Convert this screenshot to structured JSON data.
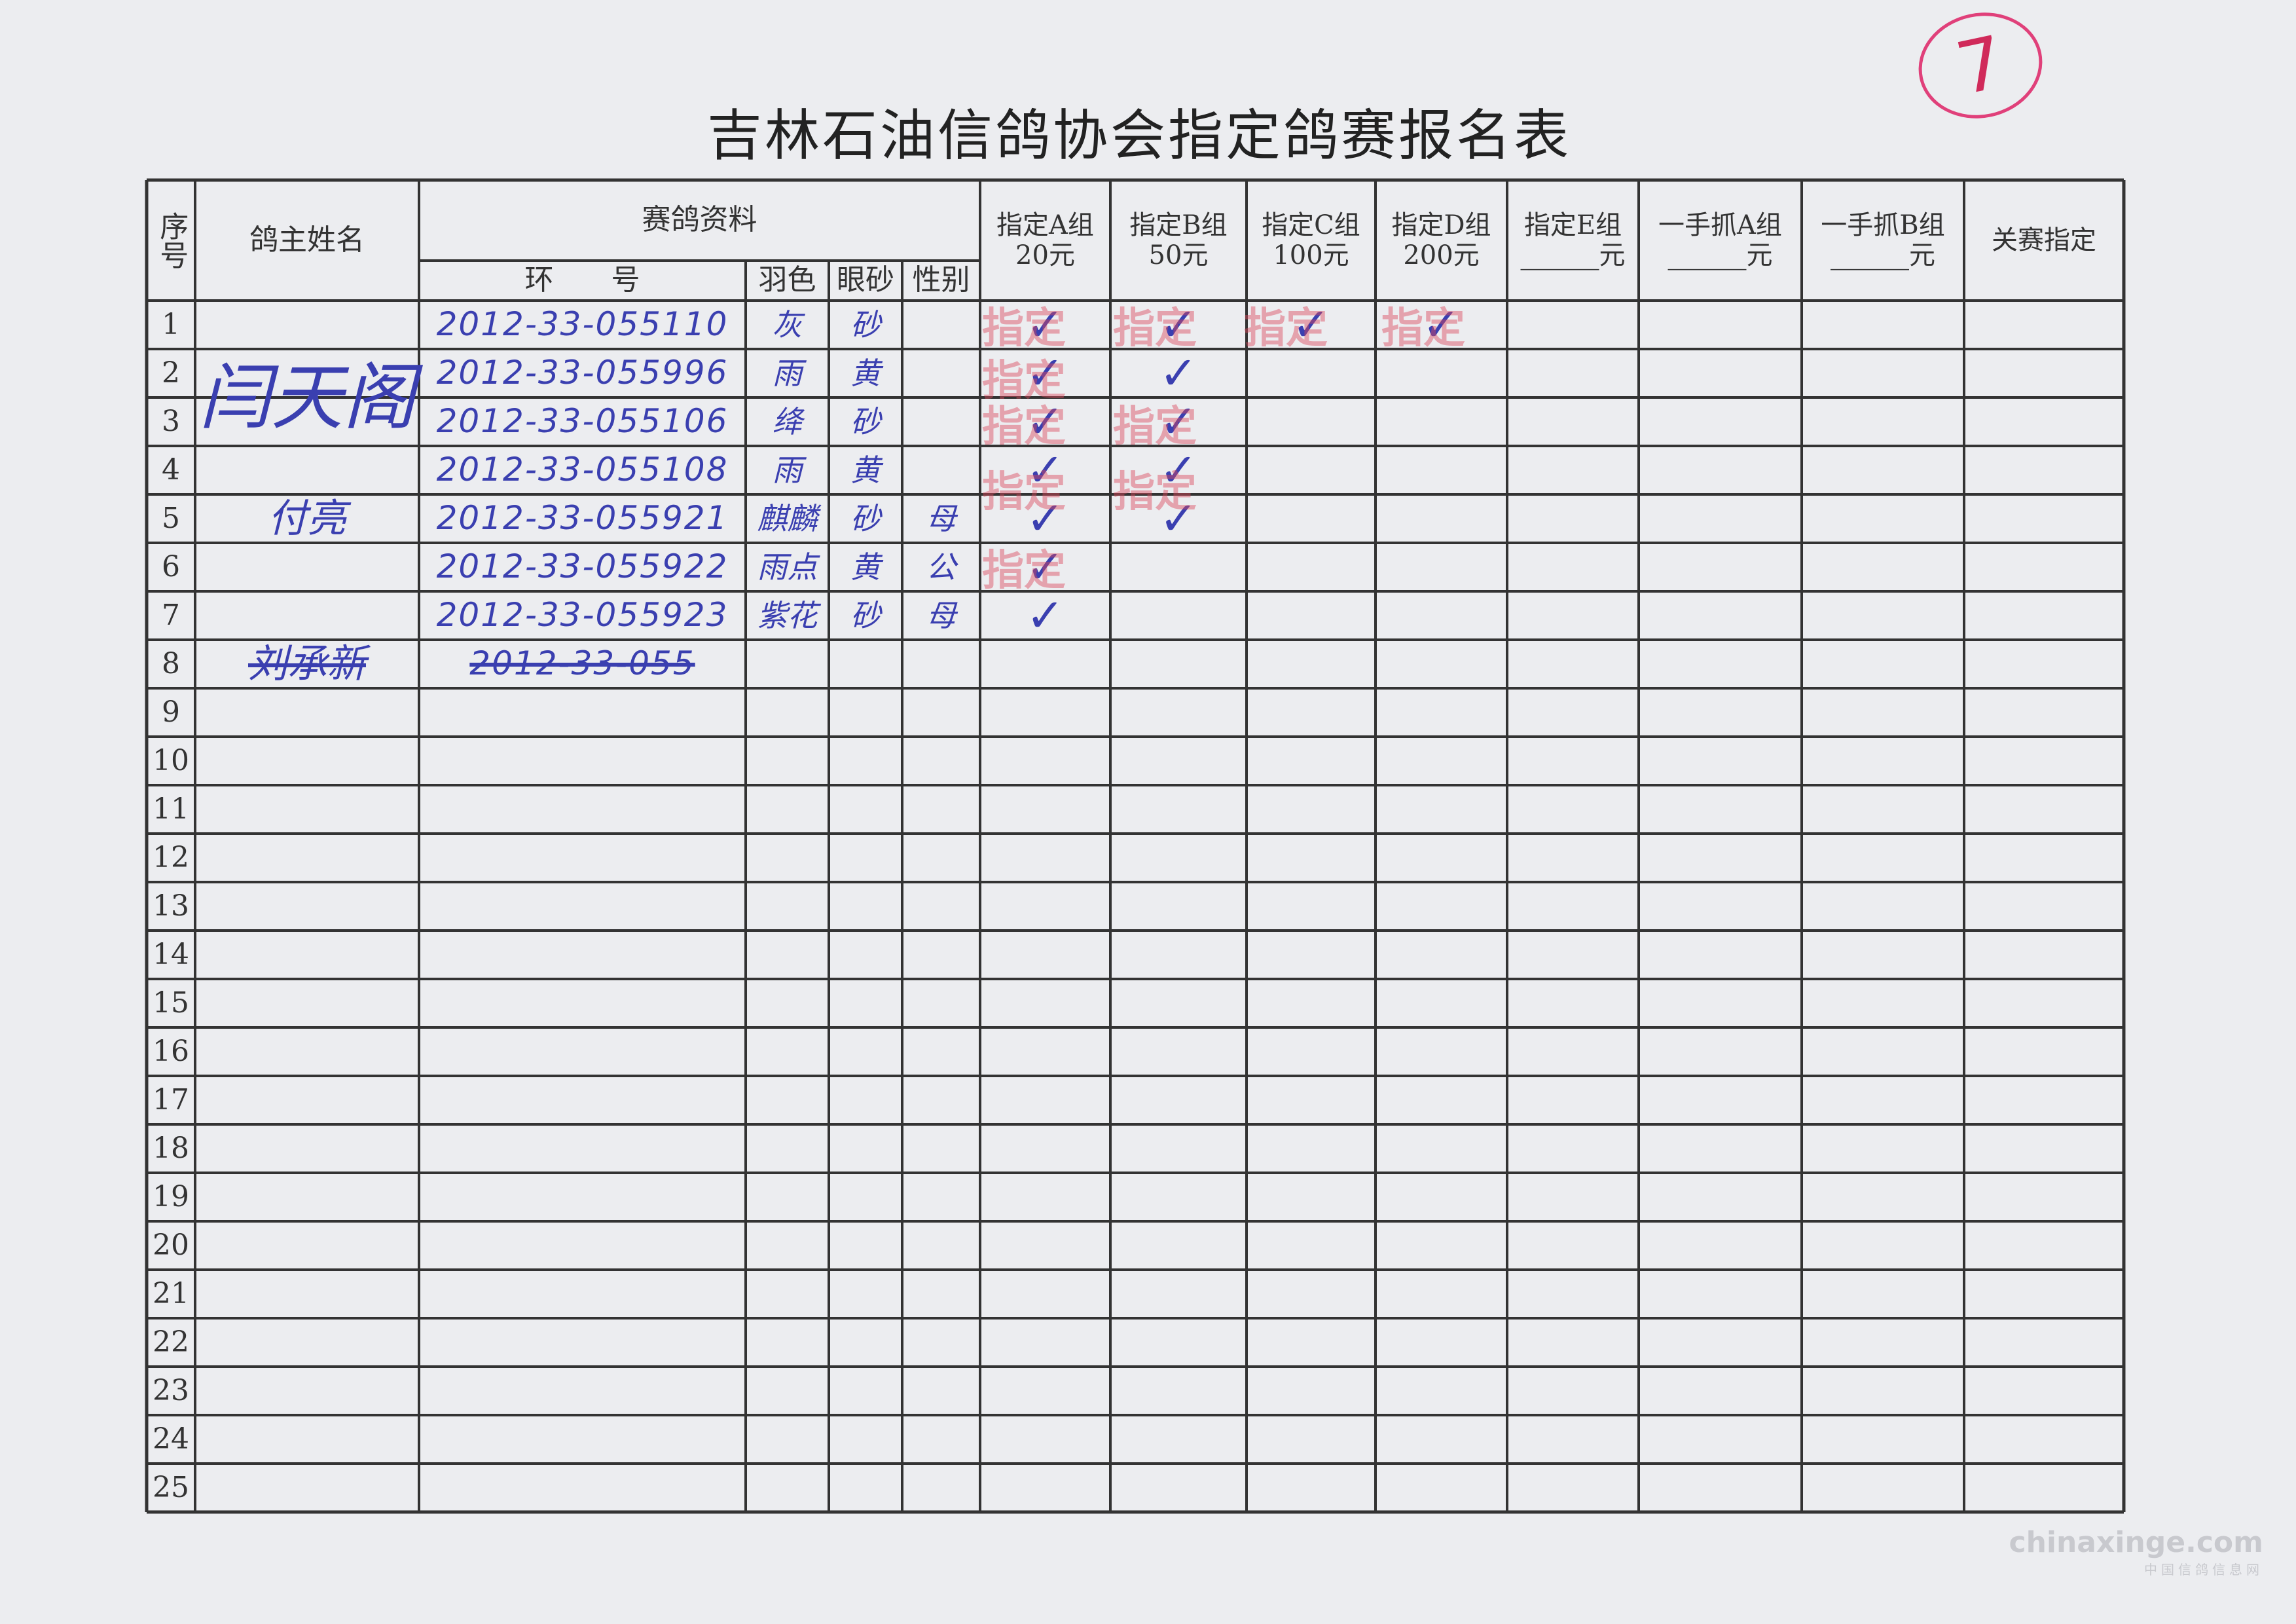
{
  "title": "吉林石油信鸽协会指定鸽赛报名表",
  "corner_mark": "7",
  "headers": {
    "seq": "序号",
    "owner": "鸽主姓名",
    "pigeon_info": "赛鸽资料",
    "ring": "环　　号",
    "feather": "羽色",
    "eye": "眼砂",
    "sex": "性别",
    "groups": [
      {
        "name": "指定A组",
        "fee": "20元"
      },
      {
        "name": "指定B组",
        "fee": "50元"
      },
      {
        "name": "指定C组",
        "fee": "100元"
      },
      {
        "name": "指定D组",
        "fee": "200元"
      },
      {
        "name": "指定E组",
        "fee": "______元"
      },
      {
        "name": "一手抓A组",
        "fee": "______元"
      },
      {
        "name": "一手抓B组",
        "fee": "______元"
      },
      {
        "name": "关赛指定",
        "fee": ""
      }
    ]
  },
  "owners": [
    {
      "name": "闫天阁",
      "rows": [
        1,
        4
      ]
    },
    {
      "name": "付亮",
      "rows": [
        5,
        5
      ]
    },
    {
      "name": "刘承新",
      "rows": [
        8,
        8
      ],
      "crossed_out": true
    }
  ],
  "rows": [
    {
      "seq": "1",
      "ring": "2012-33-055110",
      "feather": "灰",
      "eye": "砂",
      "sex": "",
      "checks": [
        true,
        true,
        true,
        true,
        false,
        false,
        false,
        false
      ]
    },
    {
      "seq": "2",
      "ring": "2012-33-055996",
      "feather": "雨",
      "eye": "黄",
      "sex": "",
      "checks": [
        true,
        true,
        false,
        false,
        false,
        false,
        false,
        false
      ]
    },
    {
      "seq": "3",
      "ring": "2012-33-055106",
      "feather": "绛",
      "eye": "砂",
      "sex": "",
      "checks": [
        true,
        true,
        false,
        false,
        false,
        false,
        false,
        false
      ]
    },
    {
      "seq": "4",
      "ring": "2012-33-055108",
      "feather": "雨",
      "eye": "黄",
      "sex": "",
      "checks": [
        true,
        true,
        false,
        false,
        false,
        false,
        false,
        false
      ]
    },
    {
      "seq": "5",
      "ring": "2012-33-055921",
      "feather": "麒麟",
      "eye": "砂",
      "sex": "母",
      "checks": [
        true,
        true,
        false,
        false,
        false,
        false,
        false,
        false
      ]
    },
    {
      "seq": "6",
      "ring": "2012-33-055922",
      "feather": "雨点",
      "eye": "黄",
      "sex": "公",
      "checks": [
        true,
        false,
        false,
        false,
        false,
        false,
        false,
        false
      ]
    },
    {
      "seq": "7",
      "ring": "2012-33-055923",
      "feather": "紫花",
      "eye": "砂",
      "sex": "母",
      "checks": [
        true,
        false,
        false,
        false,
        false,
        false,
        false,
        false
      ]
    },
    {
      "seq": "8",
      "ring": "2012-33-055",
      "feather": "",
      "eye": "",
      "sex": "",
      "crossed_out": true,
      "checks": [
        false,
        false,
        false,
        false,
        false,
        false,
        false,
        false
      ]
    },
    {
      "seq": "9"
    },
    {
      "seq": "10"
    },
    {
      "seq": "11"
    },
    {
      "seq": "12"
    },
    {
      "seq": "13"
    },
    {
      "seq": "14"
    },
    {
      "seq": "15"
    },
    {
      "seq": "16"
    },
    {
      "seq": "17"
    },
    {
      "seq": "18"
    },
    {
      "seq": "19"
    },
    {
      "seq": "20"
    },
    {
      "seq": "21"
    },
    {
      "seq": "22"
    },
    {
      "seq": "23"
    },
    {
      "seq": "24"
    },
    {
      "seq": "25"
    }
  ],
  "stamp_text": "指定",
  "check_mark": "✓",
  "watermark": {
    "domain": "chinaxinge.com",
    "name": "中国信鸽信息网"
  },
  "colors": {
    "ink": "#3a3fb0",
    "stamp": "#dc465a",
    "corner_mark": "#e0407a",
    "paper": "#ecedf0"
  }
}
